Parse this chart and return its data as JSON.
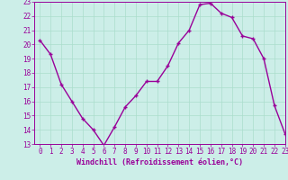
{
  "x": [
    0,
    1,
    2,
    3,
    4,
    5,
    6,
    7,
    8,
    9,
    10,
    11,
    12,
    13,
    14,
    15,
    16,
    17,
    18,
    19,
    20,
    21,
    22,
    23
  ],
  "y": [
    20.3,
    19.3,
    17.2,
    16.0,
    14.8,
    14.0,
    12.9,
    14.2,
    15.6,
    16.4,
    17.4,
    17.4,
    18.5,
    20.1,
    21.0,
    22.8,
    22.9,
    22.2,
    21.9,
    20.6,
    20.4,
    19.0,
    15.7,
    13.7
  ],
  "line_color": "#990099",
  "marker": "+",
  "marker_size": 3,
  "bg_color": "#cceee8",
  "grid_color": "#aaddcc",
  "xlabel": "Windchill (Refroidissement éolien,°C)",
  "ylim": [
    13,
    23
  ],
  "xlim": [
    -0.5,
    23
  ],
  "yticks": [
    13,
    14,
    15,
    16,
    17,
    18,
    19,
    20,
    21,
    22,
    23
  ],
  "xticks": [
    0,
    1,
    2,
    3,
    4,
    5,
    6,
    7,
    8,
    9,
    10,
    11,
    12,
    13,
    14,
    15,
    16,
    17,
    18,
    19,
    20,
    21,
    22,
    23
  ],
  "tick_color": "#990099",
  "tick_label_color": "#990099",
  "xlabel_color": "#990099",
  "xlabel_fontsize": 6.0,
  "tick_fontsize": 5.5,
  "line_width": 1.0,
  "marker_edge_width": 1.0
}
